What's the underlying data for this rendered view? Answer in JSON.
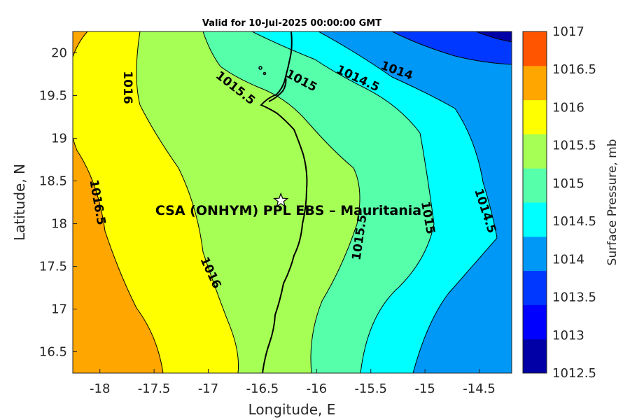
{
  "title": "Valid for 10-Jul-2025 00:00:00 GMT",
  "xlabel": "Longitude, E",
  "ylabel": "Latitude, N",
  "x_ticks": [
    "-18",
    "-17.5",
    "-17",
    "-16.5",
    "-16",
    "-15.5",
    "-15",
    "-14.5"
  ],
  "y_ticks": [
    "16.5",
    "17",
    "17.5",
    "18",
    "18.5",
    "19",
    "19.5",
    "20"
  ],
  "colorbar": {
    "label": "Surface Pressure, mb",
    "ticks": [
      "1012.5",
      "1013",
      "1013.5",
      "1014",
      "1014.5",
      "1015",
      "1015.5",
      "1016",
      "1016.5",
      "1017"
    ],
    "colors": [
      "#0000a6",
      "#0000ff",
      "#0038ff",
      "#0098f7",
      "#00ffff",
      "#56ffaa",
      "#a6ff55",
      "#ffff00",
      "#ffa600",
      "#ff5500"
    ]
  },
  "site_label": "CSA (ONHYM) PPL EBS  – Mauritania",
  "site": {
    "lon": -16.33,
    "lat": 18.27,
    "marker": "star-icon"
  },
  "contour_labels": [
    "1016",
    "1015.5",
    "1015",
    "1014.5",
    "1014",
    "1016.5",
    "1016",
    "1015.5",
    "1015",
    "1014.5"
  ],
  "chart_data": {
    "type": "heatmap",
    "title": "Valid for 10-Jul-2025 00:00:00 GMT",
    "xlabel": "Longitude, E",
    "ylabel": "Latitude, N",
    "xlim": [
      -18.25,
      -14.2
    ],
    "ylim": [
      16.25,
      20.25
    ],
    "colorbar_label": "Surface Pressure, mb",
    "colorbar_range": [
      1012.5,
      1017
    ],
    "contour_levels": [
      1014,
      1014.5,
      1015,
      1015.5,
      1016,
      1016.5
    ],
    "site": {
      "name": "CSA (ONHYM) PPL EBS  – Mauritania",
      "lon": -16.33,
      "lat": 18.27
    }
  }
}
